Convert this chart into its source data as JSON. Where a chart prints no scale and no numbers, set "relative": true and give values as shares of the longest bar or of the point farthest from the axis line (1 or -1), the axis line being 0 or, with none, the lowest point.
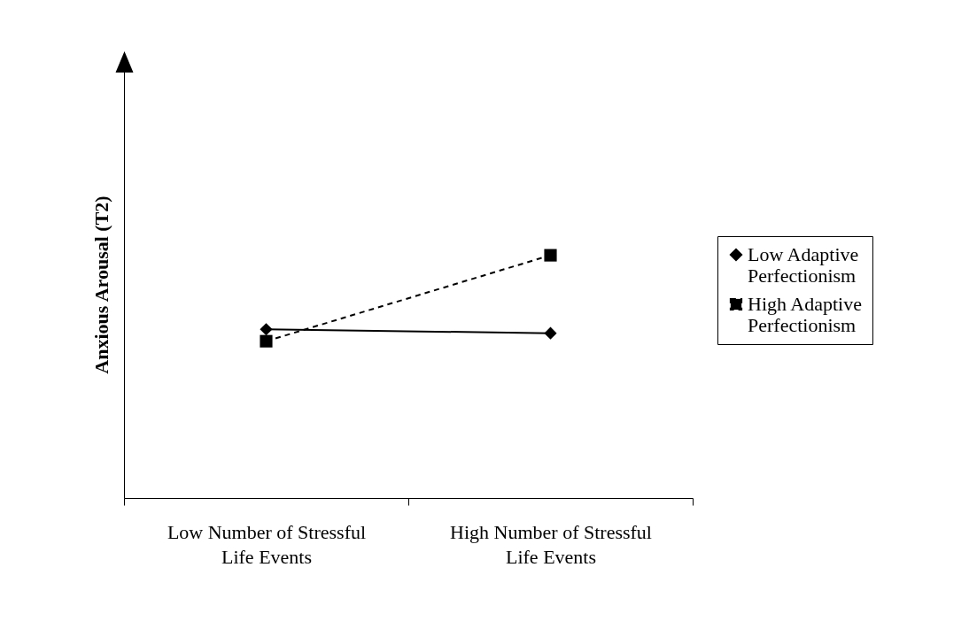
{
  "chart_data": {
    "type": "line",
    "relative": true,
    "ylabel": "Anxious Arousal (T2)",
    "categories": [
      "Low Number of Stressful Life Events",
      "High Number of Stressful Life Events"
    ],
    "series": [
      {
        "name": "Low Adaptive Perfectionism",
        "color": "#000000",
        "values": [
          0.695,
          0.679
        ],
        "marker": "diamond",
        "line_style": "solid"
      },
      {
        "name": "High Adaptive Perfectionism",
        "color": "#000000",
        "values": [
          0.646,
          1
        ],
        "marker": "square",
        "line_style": "dashed"
      }
    ],
    "legend": "right"
  }
}
